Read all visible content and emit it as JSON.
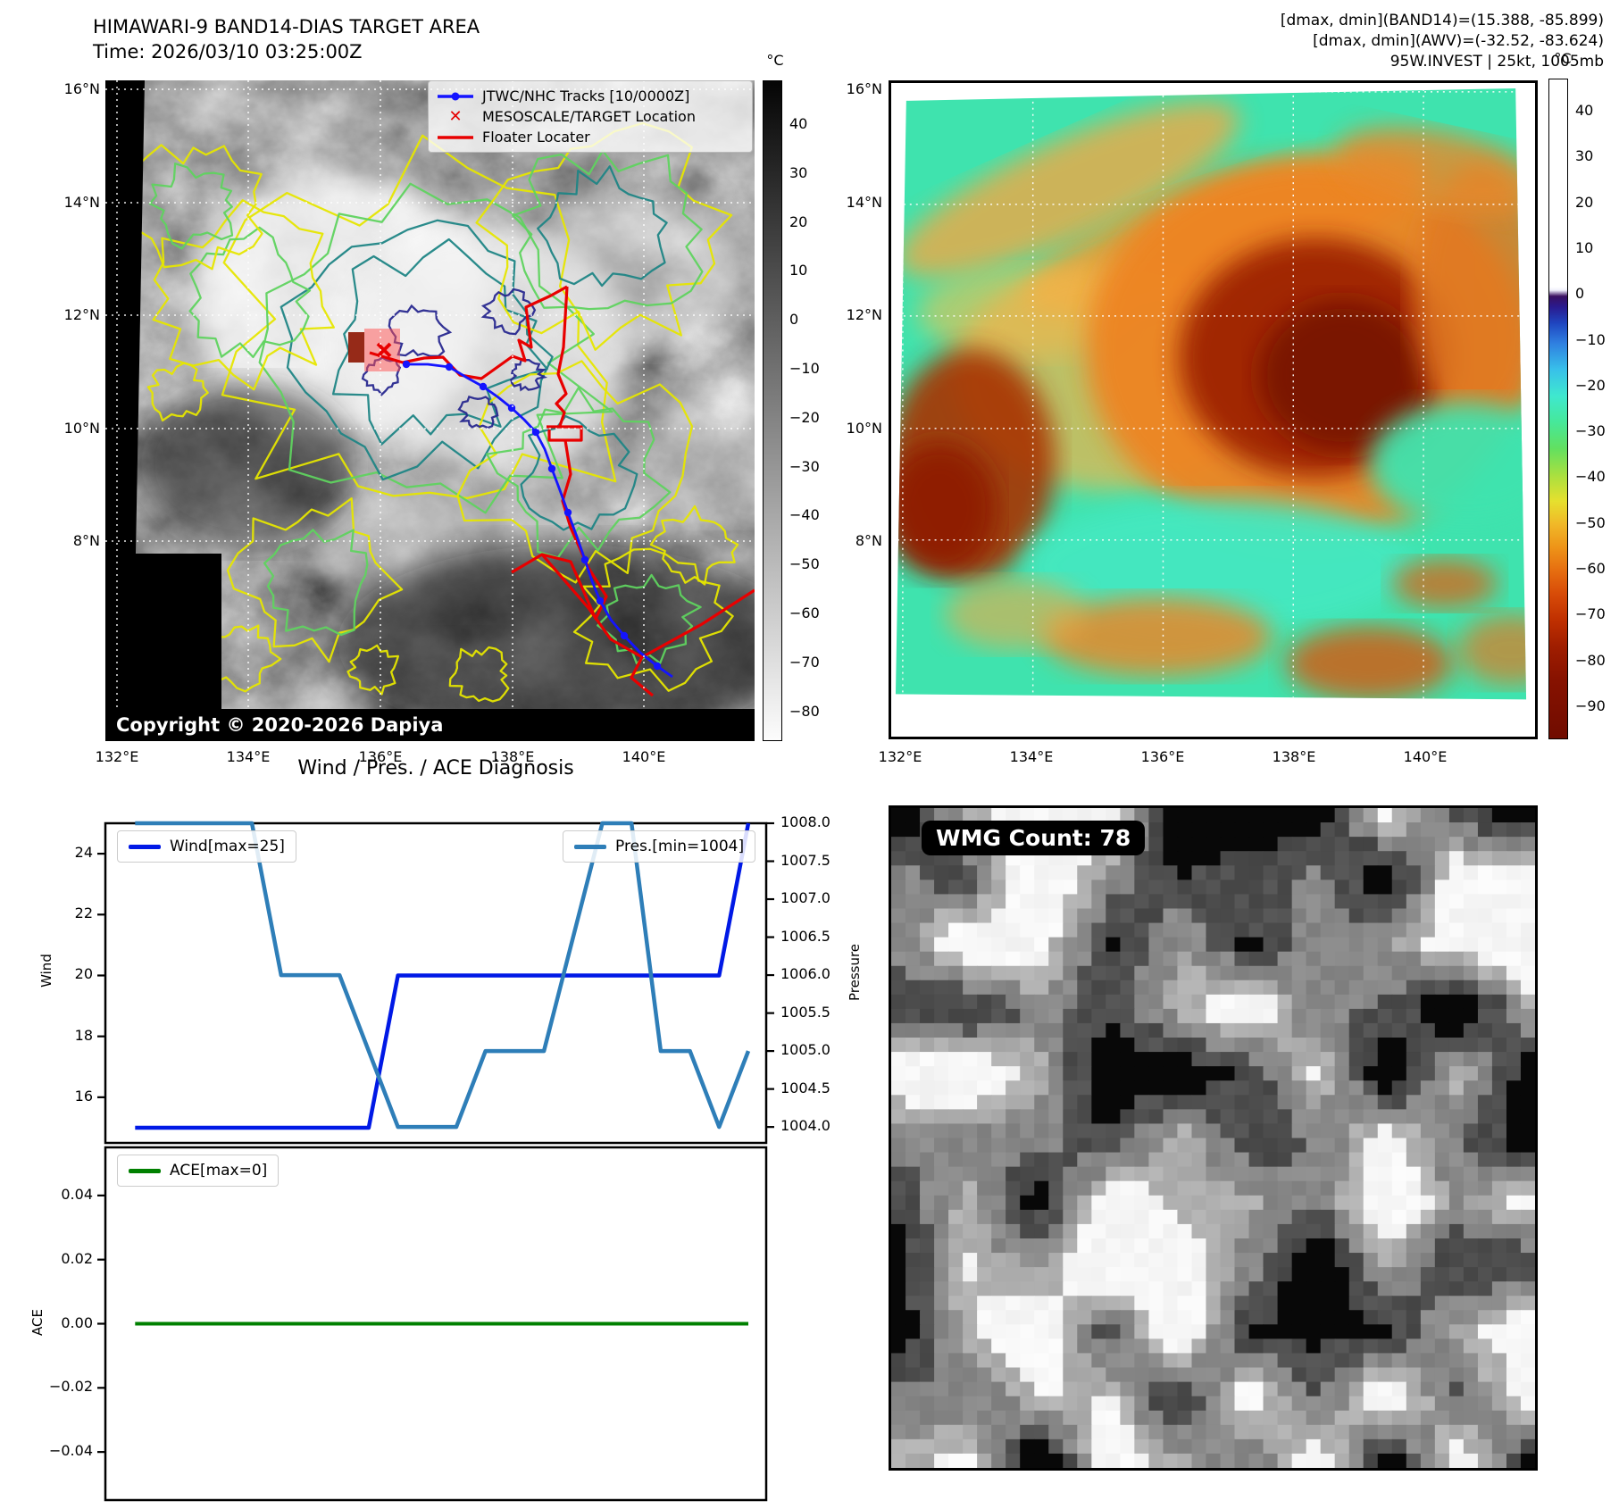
{
  "band14_panel": {
    "title_line1": "HIMAWARI-9 BAND14-DIAS TARGET AREA",
    "title_line2": "Time: 2026/03/10 03:25:00Z",
    "copyright": "Copyright © 2020-2026 Dapiya",
    "legend_items": [
      {
        "label": "JTWC/NHC Tracks [10/0000Z]",
        "marker": "blue-track-line"
      },
      {
        "label": "MESOSCALE/TARGET Location",
        "marker": "red-x"
      },
      {
        "label": "Floater Locater",
        "marker": "red-line"
      }
    ],
    "lat_ticks": [
      "16°N",
      "14°N",
      "12°N",
      "10°N",
      "8°N"
    ],
    "lon_ticks": [
      "132°E",
      "134°E",
      "136°E",
      "138°E",
      "140°E"
    ],
    "colorbar": {
      "unit": "°C",
      "ticks": [
        "40",
        "30",
        "20",
        "10",
        "0",
        "−10",
        "−20",
        "−30",
        "−40",
        "−50",
        "−60",
        "−70",
        "−80"
      ]
    }
  },
  "awv_panel": {
    "header_line1": "[dmax, dmin](BAND14)=(15.388, -85.899)",
    "header_line2": "[dmax, dmin](AWV)=(-32.52, -83.624)",
    "header_line3": "95W.INVEST | 25kt, 1005mb",
    "lat_ticks": [
      "16°N",
      "14°N",
      "12°N",
      "10°N",
      "8°N"
    ],
    "lon_ticks": [
      "132°E",
      "134°E",
      "136°E",
      "138°E",
      "140°E"
    ],
    "colorbar": {
      "unit": "°C",
      "ticks": [
        "40",
        "30",
        "20",
        "10",
        "0",
        "−10",
        "−20",
        "−30",
        "−40",
        "−50",
        "−60",
        "−70",
        "−80",
        "−90"
      ]
    }
  },
  "diagnosis": {
    "title": "Wind / Pres. / ACE Diagnosis",
    "wind_legend": "Wind[max=25]",
    "pres_legend": "Pres.[min=1004]",
    "ace_legend": "ACE[max=0]",
    "wind_ylabel": "Wind",
    "pres_ylabel": "Pressure",
    "ace_ylabel": "ACE",
    "wind_yticks": [
      "24",
      "22",
      "20",
      "18",
      "16"
    ],
    "pres_yticks": [
      "1008.0",
      "1007.5",
      "1007.0",
      "1006.5",
      "1006.0",
      "1005.5",
      "1005.0",
      "1004.5",
      "1004.0"
    ],
    "ace_yticks": [
      "0.04",
      "0.02",
      "0.00",
      "−0.02",
      "−0.04"
    ]
  },
  "wmg_panel": {
    "count_label": "WMG Count: 78"
  },
  "colors": {
    "wind_line": "#0019e6",
    "pres_line": "#2e7eb8",
    "ace_line": "#008000",
    "track_blue": "#1414ff",
    "floater_red": "#e80000",
    "contour_yellow": "#e6e600",
    "contour_green": "#5fd35f",
    "contour_teal": "#1f8585",
    "contour_navy": "#28288f",
    "awv_base": "#3fe3ae",
    "awv_warm": "#ee8424",
    "awv_core": "#8f1f00"
  },
  "chart_data": {
    "type": "line",
    "title": "Wind / Pres. / ACE Diagnosis",
    "x": [
      0,
      1,
      2,
      3,
      4,
      5,
      6,
      7,
      8,
      9,
      10,
      11,
      12,
      13,
      14,
      15,
      16,
      17,
      18,
      19,
      20,
      21
    ],
    "series": [
      {
        "name": "Wind[max=25]",
        "yaxis": "wind",
        "color": "#0019e6",
        "values": [
          15,
          15,
          15,
          15,
          15,
          15,
          15,
          15,
          15,
          20,
          20,
          20,
          20,
          20,
          20,
          20,
          20,
          20,
          20,
          20,
          20,
          25
        ]
      },
      {
        "name": "Pres.[min=1004]",
        "yaxis": "pressure",
        "color": "#2e7eb8",
        "values": [
          1008,
          1008,
          1008,
          1008,
          1008,
          1006,
          1006,
          1006,
          1005,
          1004,
          1004,
          1004,
          1005,
          1005,
          1005,
          1006.5,
          1008,
          1008,
          1005,
          1005,
          1004,
          1005
        ]
      },
      {
        "name": "ACE[max=0]",
        "yaxis": "ace",
        "color": "#008000",
        "values": [
          0,
          0,
          0,
          0,
          0,
          0,
          0,
          0,
          0,
          0,
          0,
          0,
          0,
          0,
          0,
          0,
          0,
          0,
          0,
          0,
          0,
          0
        ]
      }
    ],
    "wind_ylim": [
      14.5,
      25
    ],
    "pressure_ylim": [
      1003.79,
      1008.0
    ],
    "ace_ylim": [
      -0.055,
      0.055
    ],
    "grid": false,
    "x_axis_labels_visible": false
  }
}
